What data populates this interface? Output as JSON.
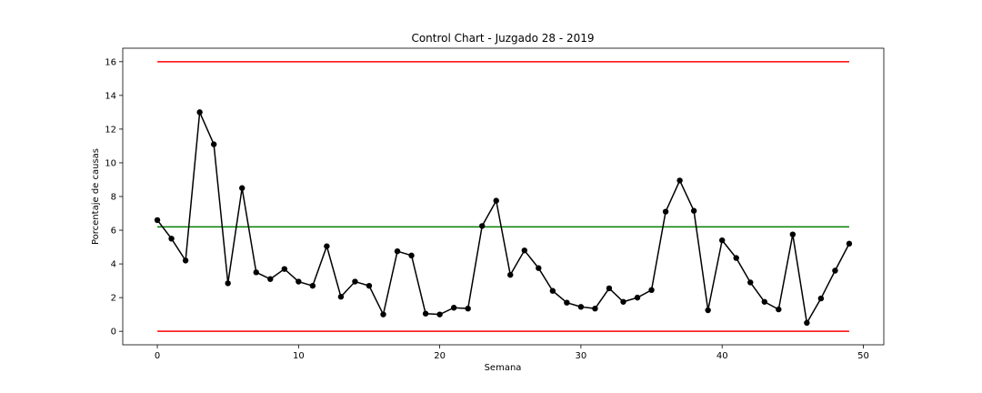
{
  "chart_data": {
    "type": "line",
    "title": "Control Chart - Juzgado 28 - 2019",
    "xlabel": "Semana",
    "ylabel": "Porcentaje de causas",
    "xlim": [
      -2.45,
      51.45
    ],
    "ylim": [
      -0.8,
      16.8
    ],
    "xticks": [
      0,
      10,
      20,
      30,
      40,
      50
    ],
    "yticks": [
      0,
      2,
      4,
      6,
      8,
      10,
      12,
      14,
      16
    ],
    "grid": false,
    "series": [
      {
        "color": "#000000",
        "marker": "circle",
        "x": [
          0,
          1,
          2,
          3,
          4,
          5,
          6,
          7,
          8,
          9,
          10,
          11,
          12,
          13,
          14,
          15,
          16,
          17,
          18,
          19,
          20,
          21,
          22,
          23,
          24,
          25,
          26,
          27,
          28,
          29,
          30,
          31,
          32,
          33,
          34,
          35,
          36,
          37,
          38,
          39,
          40,
          41,
          42,
          43,
          44,
          45,
          46,
          47,
          48,
          49
        ],
        "values": [
          6.6,
          5.5,
          4.2,
          13.0,
          11.1,
          2.85,
          8.5,
          3.5,
          3.1,
          3.7,
          2.95,
          2.7,
          5.05,
          2.05,
          2.95,
          2.7,
          1.0,
          4.75,
          4.5,
          1.05,
          1.0,
          1.4,
          1.35,
          6.25,
          7.75,
          3.35,
          4.8,
          3.75,
          2.4,
          1.7,
          1.45,
          1.35,
          2.55,
          1.75,
          2.0,
          2.45,
          7.1,
          8.95,
          7.15,
          1.25,
          5.4,
          4.35,
          2.9,
          1.75,
          1.3,
          5.75,
          0.5,
          1.95,
          3.6,
          5.2
        ]
      }
    ],
    "reference_lines": [
      {
        "role": "upper_limit",
        "y": 16.0,
        "x_range": [
          0,
          49
        ],
        "color": "#ff0000"
      },
      {
        "role": "center_line",
        "y": 6.2,
        "x_range": [
          0,
          49
        ],
        "color": "#008000"
      },
      {
        "role": "lower_limit",
        "y": 0.0,
        "x_range": [
          0,
          49
        ],
        "color": "#ff0000"
      }
    ]
  }
}
